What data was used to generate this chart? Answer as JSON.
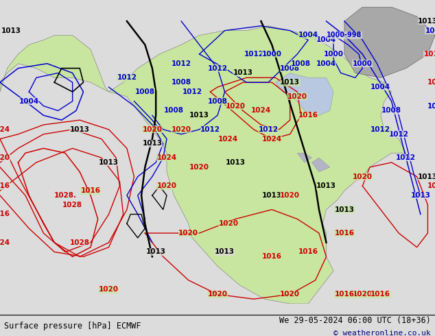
{
  "title_left": "Surface pressure [hPa] ECMWF",
  "title_right": "We 29-05-2024 06:00 UTC (18+36)",
  "copyright": "© weatheronline.co.uk",
  "bg_color": "#dcdcdc",
  "land_color": "#c8e6a0",
  "terrain_color": "#a8a8a8",
  "lake_color": "#b4b4c8",
  "red": "#cc0000",
  "blue": "#0000cc",
  "black": "#000000",
  "footer_fontsize": 8.5,
  "label_fontsize": 7.5
}
